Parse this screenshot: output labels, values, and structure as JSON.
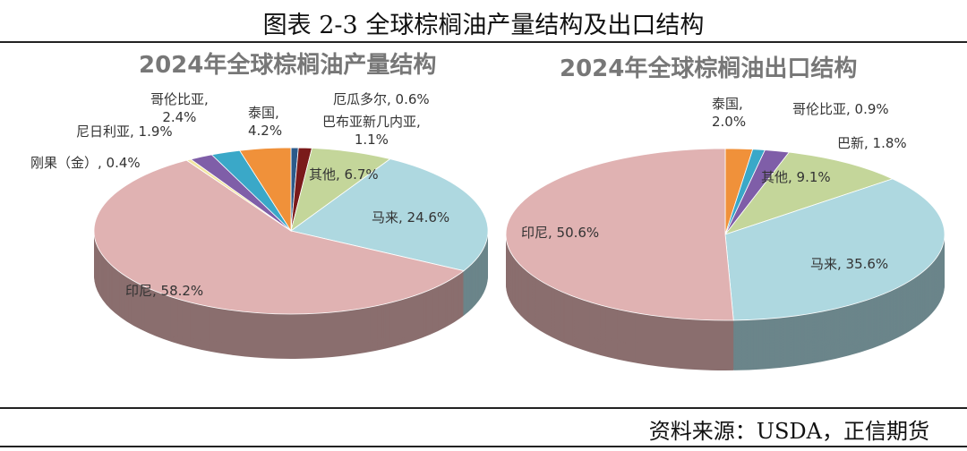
{
  "title": "图表 2-3  全球棕榈油产量结构及出口结构",
  "source": "资料来源：USDA，正信期货",
  "chart_data": [
    {
      "type": "pie",
      "title": "2024年全球棕榈油产量结构",
      "slices": [
        {
          "name": "厄瓜多尔",
          "value": 0.6,
          "label": "厄瓜多尔, 0.6%",
          "color": "#2c5a8a"
        },
        {
          "name": "巴布亚新几内亚",
          "value": 1.1,
          "label": "巴布亚新几内亚,",
          "label2": "1.1%",
          "color": "#7a1a1a"
        },
        {
          "name": "其他",
          "value": 6.7,
          "label": "其他, 6.7%",
          "color": "#c4d69a"
        },
        {
          "name": "马来",
          "value": 24.6,
          "label": "马来, 24.6%",
          "color": "#aed8e0"
        },
        {
          "name": "印尼",
          "value": 58.2,
          "label": "印尼, 58.2%",
          "color": "#e0b2b2"
        },
        {
          "name": "刚果（金）",
          "value": 0.4,
          "label": "刚果（金）, 0.4%",
          "color": "#f2e6a0"
        },
        {
          "name": "尼日利亚",
          "value": 1.9,
          "label": "尼日利亚, 1.9%",
          "color": "#7f5ea8"
        },
        {
          "name": "哥伦比亚",
          "value": 2.4,
          "label": "哥伦比亚,",
          "label2": "2.4%",
          "color": "#3aa8c8"
        },
        {
          "name": "泰国",
          "value": 4.2,
          "label": "泰国,",
          "label2": "4.2%",
          "color": "#f0913a"
        }
      ]
    },
    {
      "type": "pie",
      "title": "2024年全球棕榈油出口结构",
      "slices": [
        {
          "name": "泰国",
          "value": 2.0,
          "label": "泰国,",
          "label2": "2.0%",
          "color": "#f0913a"
        },
        {
          "name": "哥伦比亚",
          "value": 0.9,
          "label": "哥伦比亚, 0.9%",
          "color": "#3aa8c8"
        },
        {
          "name": "巴新",
          "value": 1.8,
          "label": "巴新, 1.8%",
          "color": "#7f5ea8"
        },
        {
          "name": "其他",
          "value": 9.1,
          "label": "其他, 9.1%",
          "color": "#c4d69a"
        },
        {
          "name": "马来",
          "value": 35.6,
          "label": "马来, 35.6%",
          "color": "#aed8e0"
        },
        {
          "name": "印尼",
          "value": 50.6,
          "label": "印尼, 50.6%",
          "color": "#e0b2b2"
        }
      ]
    }
  ]
}
